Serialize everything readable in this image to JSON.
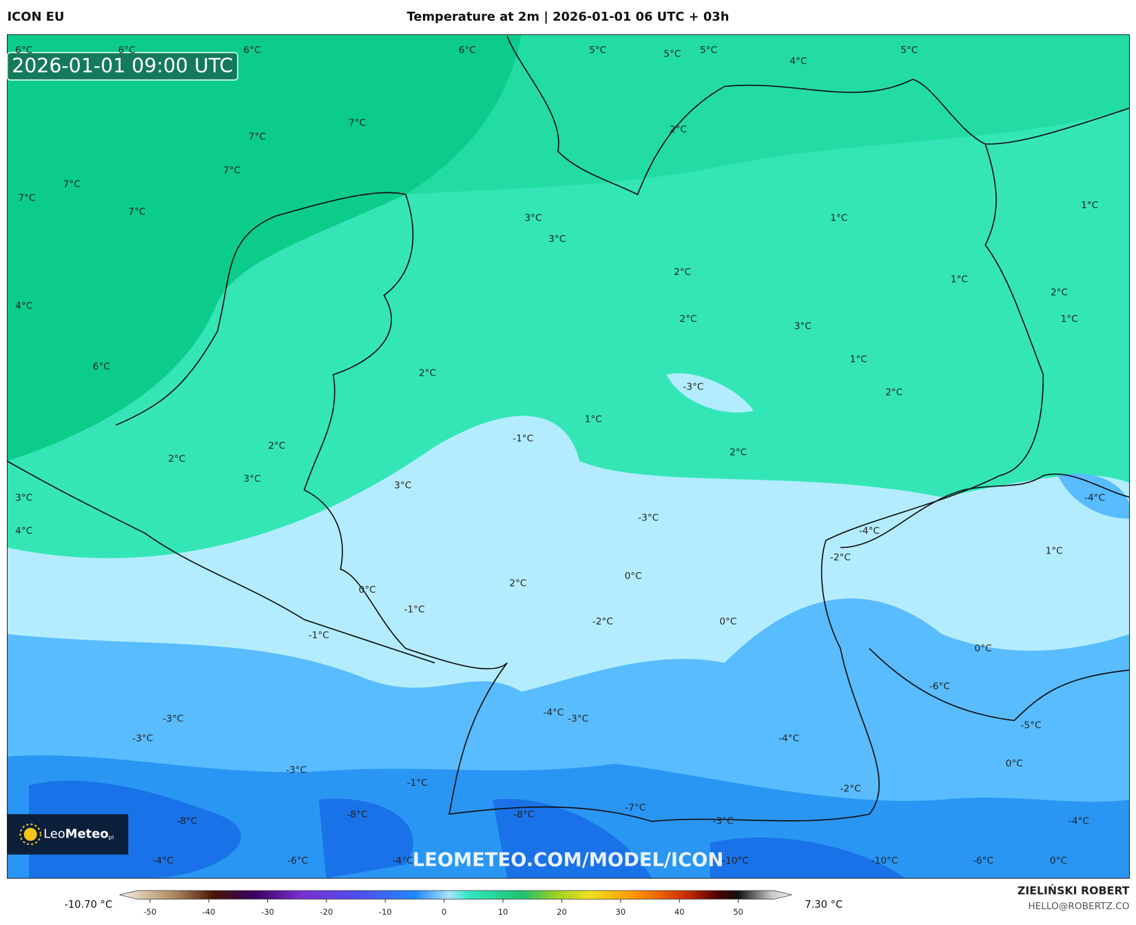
{
  "header": {
    "model": "ICON EU",
    "title": "Temperature at 2m | 2026-01-01 06 UTC + 03h"
  },
  "timestamp": "2026-01-01 09:00 UTC",
  "watermark": "LEOMETEO.COM/MODEL/ICON",
  "logo": {
    "light": "Leo",
    "bold": "Meteo",
    "suffix": "pl"
  },
  "map_labels": [
    "6°C",
    "6°C",
    "6°C",
    "6°C",
    "5°C",
    "5°C",
    "5°C",
    "4°C",
    "5°C",
    "7°C",
    "7°C",
    "2°C",
    "7°C",
    "7°C",
    "7°C",
    "7°C",
    "3°C",
    "3°C",
    "1°C",
    "1°C",
    "2°C",
    "1°C",
    "4°C",
    "2°C",
    "2°C",
    "3°C",
    "1°C",
    "1°C",
    "6°C",
    "2°C",
    "-3°C",
    "2°C",
    "1°C",
    "-1°C",
    "2°C",
    "2°C",
    "2°C",
    "3°C",
    "3°C",
    "-4°C",
    "3°C",
    "-3°C",
    "-4°C",
    "4°C",
    "1°C",
    "-2°C",
    "0°C",
    "2°C",
    "0°C",
    "-1°C",
    "-2°C",
    "0°C",
    "-1°C",
    "0°C",
    "-6°C",
    "-4°C",
    "-3°C",
    "-3°C",
    "-5°C",
    "-3°C",
    "-4°C",
    "0°C",
    "-3°C",
    "-1°C",
    "-2°C",
    "-7°C",
    "-8°C",
    "-8°C",
    "-8°C",
    "-3°C",
    "-4°C",
    "-4°C",
    "-6°C",
    "-4°C",
    "-10°C",
    "-10°C",
    "-6°C",
    "0°C"
  ],
  "colorbar": {
    "min_label": "-10.70 °C",
    "max_label": "7.30 °C",
    "ticks": [
      -50,
      -40,
      -30,
      -20,
      -10,
      0,
      10,
      20,
      30,
      40,
      50
    ]
  },
  "footer": {
    "author": "ZIELIŃSKI ROBERT",
    "email": "HELLO@ROBERTZ.CO"
  }
}
